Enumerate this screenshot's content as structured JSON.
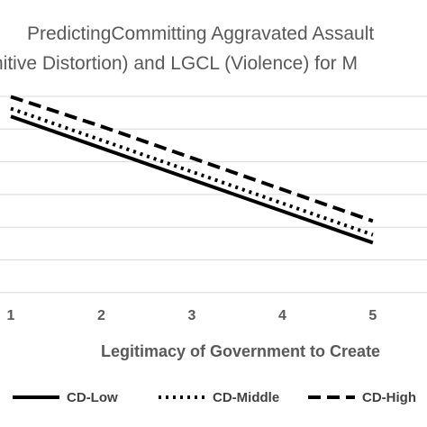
{
  "chart_data": {
    "type": "line",
    "title_line1": "PredictingCommitting Aggravated Assault",
    "title_line2": "nitive Distortion)  and  LGCL  (Violence)  for M",
    "xlabel": "Legitimacy of Government to Create",
    "ylabel": "",
    "x": [
      1,
      2,
      3,
      4,
      5
    ],
    "x_tick_labels": [
      "1",
      "2",
      "3",
      "4",
      "5"
    ],
    "xlim": [
      1,
      5.3
    ],
    "ylim": [
      0,
      1
    ],
    "grid": true,
    "legend_position": "bottom",
    "series": [
      {
        "name": "CD-Low",
        "style": "solid",
        "color": "#000000",
        "values": [
          0.88,
          0.72,
          0.56,
          0.4,
          0.24
        ]
      },
      {
        "name": "CD-Middle",
        "style": "dotted",
        "color": "#000000",
        "values": [
          0.92,
          0.76,
          0.6,
          0.44,
          0.28
        ]
      },
      {
        "name": "CD-High",
        "style": "dashed",
        "color": "#000000",
        "values": [
          0.98,
          0.83,
          0.67,
          0.51,
          0.35
        ]
      }
    ]
  }
}
